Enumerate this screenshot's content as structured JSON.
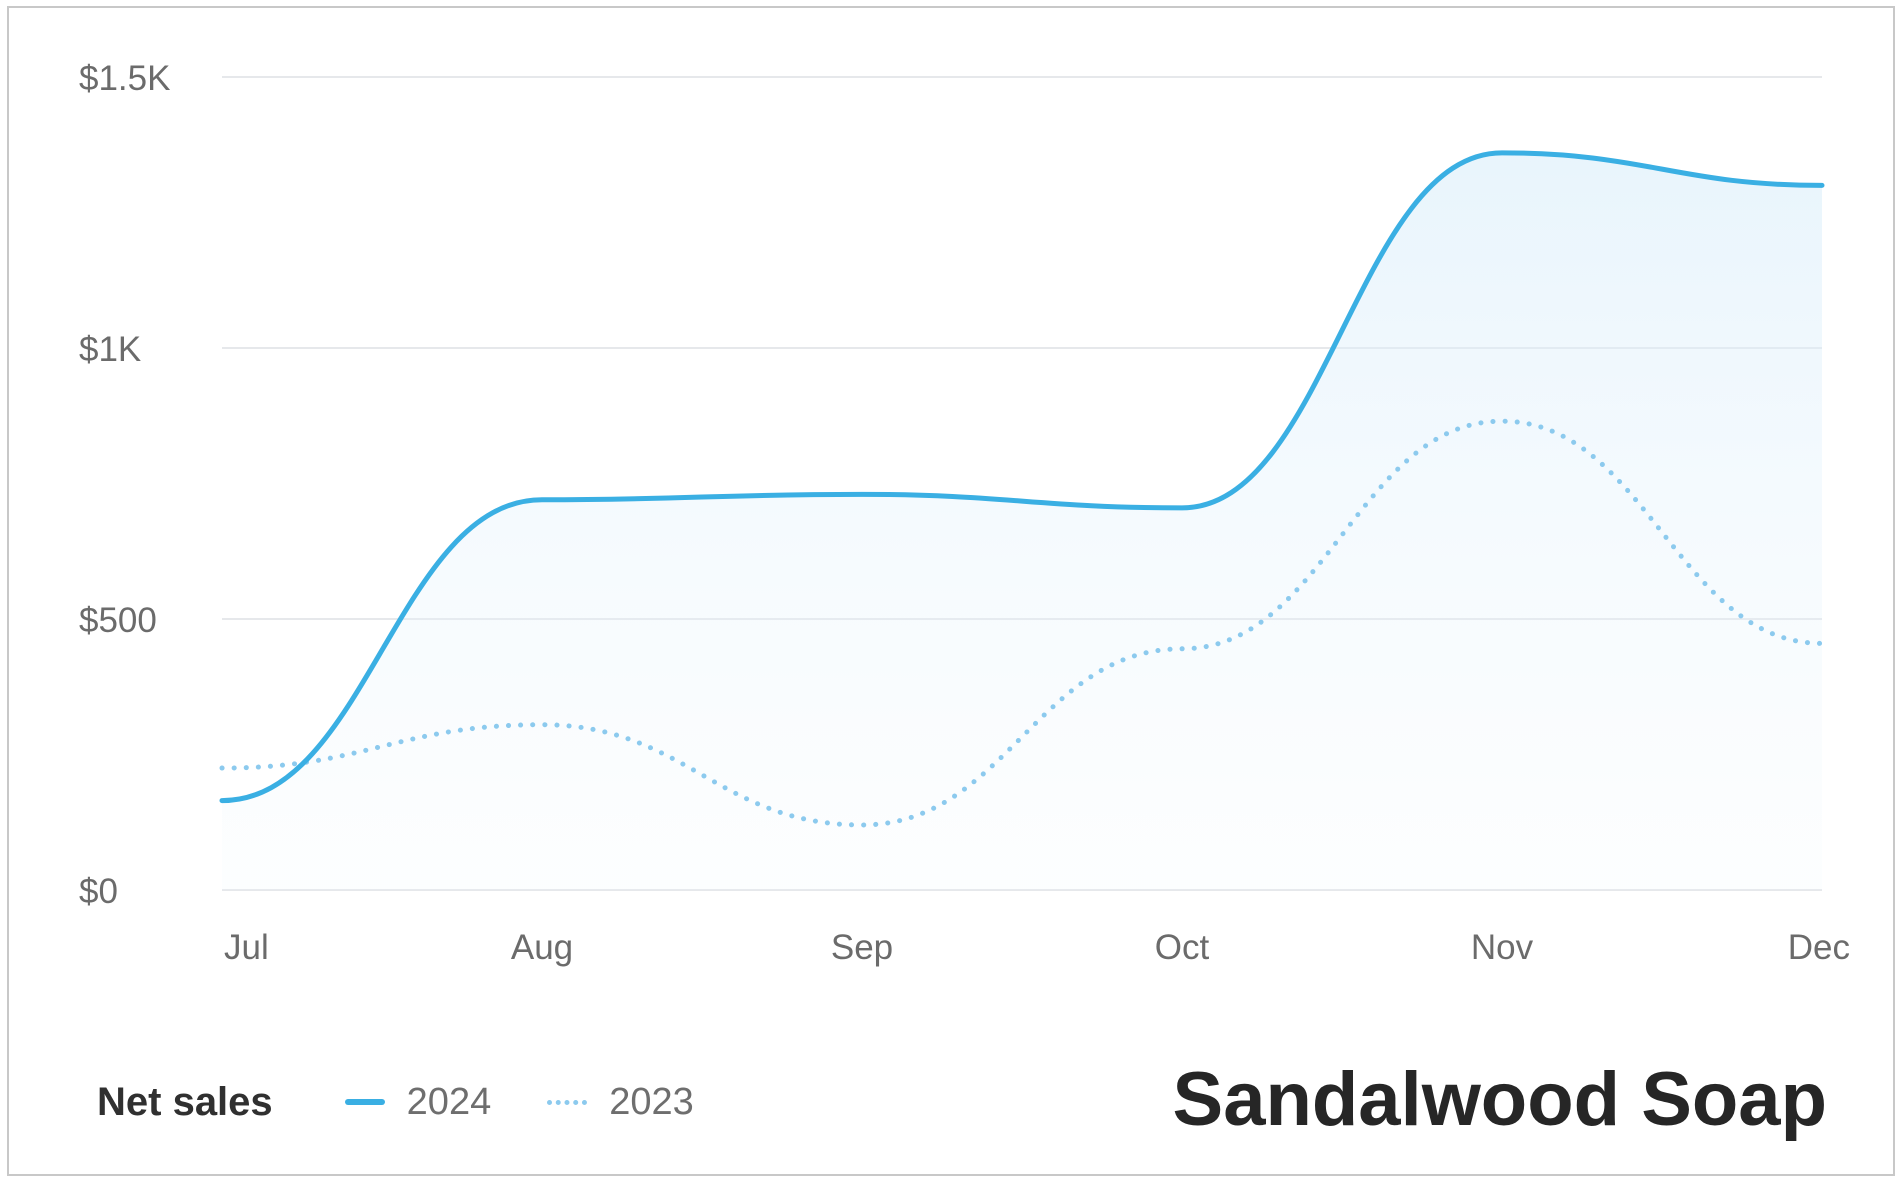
{
  "chart_data": {
    "type": "line",
    "title": "",
    "xlabel": "",
    "ylabel": "",
    "categories": [
      "Jul",
      "Aug",
      "Sep",
      "Oct",
      "Nov",
      "Dec"
    ],
    "y_ticks": [
      "$0",
      "$500",
      "$1K",
      "$1.5K"
    ],
    "y_tick_values": [
      0,
      500,
      1000,
      1500
    ],
    "ylim": [
      0,
      1500
    ],
    "grid": true,
    "legend_position": "bottom-left",
    "legend_title": "Net sales",
    "series": [
      {
        "name": "2024",
        "style": "solid",
        "color": "#3aafe3",
        "values": [
          165,
          720,
          730,
          705,
          1360,
          1300
        ]
      },
      {
        "name": "2023",
        "style": "dotted",
        "color": "#8ccaee",
        "values": [
          225,
          305,
          120,
          445,
          865,
          455
        ]
      }
    ]
  },
  "product_name": "Sandalwood Soap"
}
